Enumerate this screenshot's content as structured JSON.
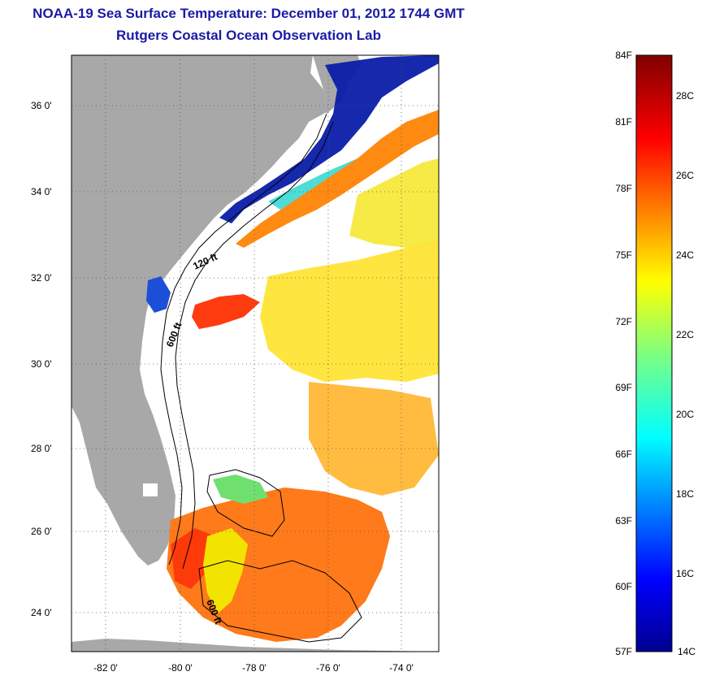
{
  "title": {
    "line1": "NOAA-19 Sea Surface Temperature:  December 01, 2012 1744 GMT",
    "line2": "Rutgers Coastal Ocean Observation Lab"
  },
  "map": {
    "lat_ticks": [
      "36 0'",
      "34 0'",
      "32 0'",
      "30 0'",
      "28 0'",
      "26 0'",
      "24 0'"
    ],
    "lon_ticks": [
      "-82 0'",
      "-80 0'",
      "-78 0'",
      "-76 0'",
      "-74 0'"
    ],
    "contour_labels": [
      "120 ft",
      "600 ft",
      "600 ft"
    ],
    "colors": {
      "land": "#a8a8a8",
      "ocean_nodata": "#ffffff",
      "grid": "#000000"
    }
  },
  "colorbar": {
    "fahrenheit": [
      "84F",
      "81F",
      "78F",
      "75F",
      "72F",
      "69F",
      "66F",
      "63F",
      "60F",
      "57F"
    ],
    "celsius": [
      "28C",
      "26C",
      "24C",
      "22C",
      "20C",
      "18C",
      "16C",
      "14C"
    ],
    "range_c": [
      14,
      29
    ],
    "range_f": [
      57,
      84
    ]
  }
}
